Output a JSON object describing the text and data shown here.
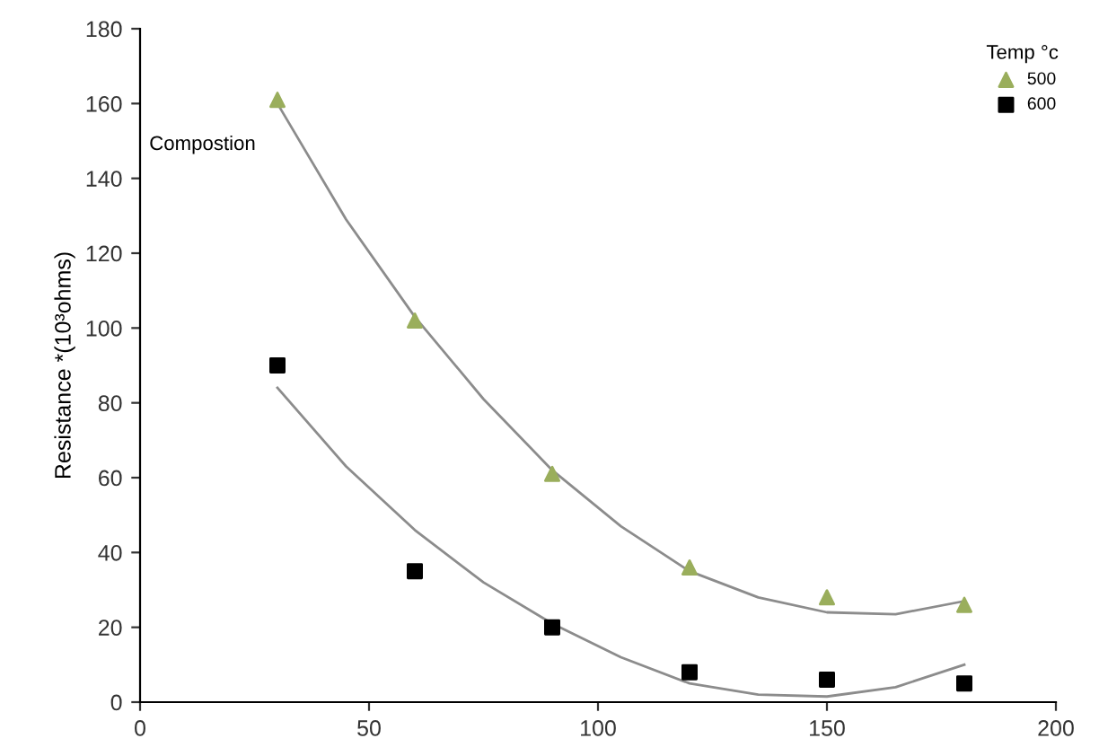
{
  "chart_data": {
    "type": "scatter",
    "ylabel": "Resistance *(10³ohms)",
    "legend_title": "Temp °c",
    "legend": "top right",
    "grid": false,
    "annotations": [
      "Compostion"
    ],
    "x": [
      30,
      60,
      90,
      120,
      150,
      180
    ],
    "series": [
      {
        "name": "500",
        "color": "#9aae5c",
        "marker": "triangle",
        "values": [
          161,
          102,
          61,
          36,
          28,
          26
        ]
      },
      {
        "name": "600",
        "color": "#000000",
        "marker": "square",
        "values": [
          90,
          35,
          20,
          8,
          6,
          5
        ]
      },
      {
        "type": "line",
        "color": "#8c8c8c",
        "marker": "none",
        "x": [
          30,
          45,
          60,
          75,
          90,
          105,
          120,
          135,
          150,
          165,
          180
        ],
        "values": [
          160,
          129,
          103,
          81,
          62,
          47,
          35,
          28,
          24,
          23.5,
          27
        ]
      },
      {
        "type": "line",
        "color": "#8c8c8c",
        "marker": "none",
        "x": [
          30,
          45,
          60,
          75,
          90,
          105,
          120,
          135,
          150,
          165,
          180
        ],
        "values": [
          84,
          63,
          46,
          32,
          21,
          12,
          5,
          2,
          1.5,
          4,
          10
        ]
      }
    ],
    "xlim": [
      0,
      200
    ],
    "xticks": [
      0,
      50,
      100,
      150,
      200
    ],
    "ylim": [
      0,
      180
    ],
    "yticks": [
      0,
      20,
      40,
      60,
      80,
      100,
      120,
      140,
      160,
      180
    ]
  }
}
